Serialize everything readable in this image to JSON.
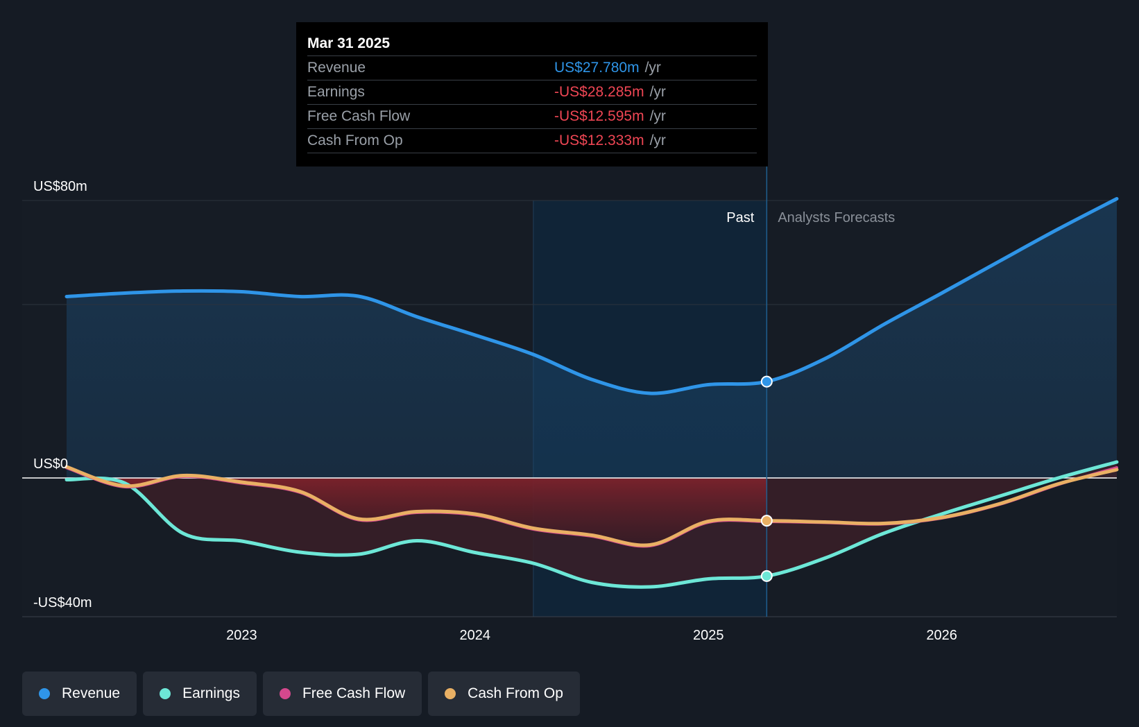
{
  "tooltip": {
    "date": "Mar 31 2025",
    "rows": [
      {
        "label": "Revenue",
        "value": "US$27.780m",
        "unit": "/yr",
        "color": "#2f95e8"
      },
      {
        "label": "Earnings",
        "value": "-US$28.285m",
        "unit": "/yr",
        "color": "#ef4654"
      },
      {
        "label": "Free Cash Flow",
        "value": "-US$12.595m",
        "unit": "/yr",
        "color": "#ef4654"
      },
      {
        "label": "Cash From Op",
        "value": "-US$12.333m",
        "unit": "/yr",
        "color": "#ef4654"
      }
    ]
  },
  "region_labels": {
    "past": "Past",
    "forecast": "Analysts Forecasts"
  },
  "legend": [
    {
      "label": "Revenue",
      "color": "#2f95e8"
    },
    {
      "label": "Earnings",
      "color": "#6de7d7"
    },
    {
      "label": "Free Cash Flow",
      "color": "#d4488d"
    },
    {
      "label": "Cash From Op",
      "color": "#e9b064"
    }
  ],
  "chart_data": {
    "type": "line",
    "y_unit": "US$ m",
    "ylim": [
      -40,
      80
    ],
    "xlim": [
      2022.25,
      2026.75
    ],
    "y_tick_labels": [
      {
        "value": 80,
        "label": "US$80m"
      },
      {
        "value": 0,
        "label": "US$0"
      },
      {
        "value": -40,
        "label": "-US$40m"
      }
    ],
    "x_ticks": [
      2023,
      2024,
      2025,
      2026
    ],
    "x_tick_labels": [
      "2023",
      "2024",
      "2025",
      "2026"
    ],
    "gridlines": [
      80,
      50,
      0
    ],
    "past_band": [
      2024.25,
      2025.25
    ],
    "divider_x": 2025.25,
    "series": [
      {
        "name": "Revenue",
        "color": "#2f95e8",
        "x": [
          2022.25,
          2022.5,
          2022.75,
          2023.0,
          2023.25,
          2023.5,
          2023.75,
          2024.0,
          2024.25,
          2024.5,
          2024.75,
          2025.0,
          2025.25,
          2025.5,
          2025.75,
          2026.0,
          2026.25,
          2026.5,
          2026.75
        ],
        "y": [
          52.3,
          53.3,
          53.9,
          53.7,
          52.3,
          52.4,
          46.5,
          41.2,
          35.6,
          28.4,
          24.4,
          26.9,
          27.78,
          34.4,
          44.2,
          53.3,
          62.6,
          71.8,
          80.5
        ]
      },
      {
        "name": "Earnings",
        "color": "#6de7d7",
        "x": [
          2022.25,
          2022.5,
          2022.75,
          2023.0,
          2023.25,
          2023.5,
          2023.75,
          2024.0,
          2024.25,
          2024.5,
          2024.75,
          2025.0,
          2025.25,
          2025.5,
          2025.75,
          2026.0,
          2026.25,
          2026.5,
          2026.75
        ],
        "y": [
          -0.5,
          -1.5,
          -16.0,
          -18.2,
          -21.4,
          -22.0,
          -18.1,
          -21.5,
          -24.6,
          -30.1,
          -31.4,
          -29.1,
          -28.285,
          -23.1,
          -16.0,
          -10.4,
          -5.2,
          0.0,
          4.6
        ]
      },
      {
        "name": "Free Cash Flow",
        "color": "#d4488d",
        "x": [
          2022.25,
          2022.5,
          2022.75,
          2023.0,
          2023.25,
          2023.5,
          2023.75,
          2024.0,
          2024.25,
          2024.5,
          2024.75,
          2025.0,
          2025.25,
          2025.5,
          2025.75,
          2026.0,
          2026.25,
          2026.5,
          2026.75
        ],
        "y": [
          2.9,
          -2.6,
          0.4,
          -1.5,
          -4.2,
          -12.1,
          -10.0,
          -10.7,
          -14.8,
          -16.8,
          -19.6,
          -12.8,
          -12.595,
          -12.9,
          -13.3,
          -11.6,
          -7.6,
          -1.9,
          3.0
        ]
      },
      {
        "name": "Cash From Op",
        "color": "#e9b064",
        "x": [
          2022.25,
          2022.5,
          2022.75,
          2023.0,
          2023.25,
          2023.5,
          2023.75,
          2024.0,
          2024.25,
          2024.5,
          2024.75,
          2025.0,
          2025.25,
          2025.5,
          2025.75,
          2026.0,
          2026.25,
          2026.5,
          2026.75
        ],
        "y": [
          3.2,
          -2.3,
          0.7,
          -1.2,
          -3.9,
          -11.8,
          -9.7,
          -10.4,
          -14.5,
          -16.5,
          -19.3,
          -12.5,
          -12.333,
          -12.7,
          -13.1,
          -11.4,
          -7.4,
          -1.7,
          2.4
        ]
      }
    ]
  }
}
